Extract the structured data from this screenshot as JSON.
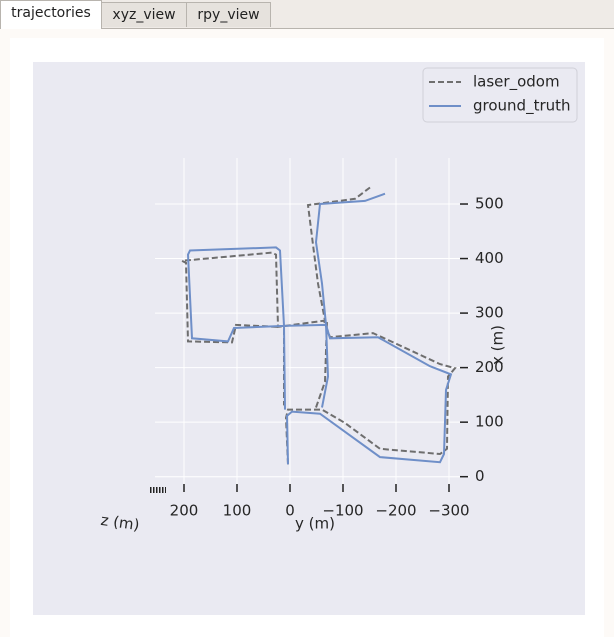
{
  "tabs": [
    "trajectories",
    "xyz_view",
    "rpy_view"
  ],
  "chart_data": {
    "type": "line",
    "xlabel": "y (m)",
    "ylabel": "x (m)",
    "zlabel": "z (m)",
    "xlim": [
      230,
      -320
    ],
    "ylim": [
      -20,
      560
    ],
    "xticks": [
      200,
      100,
      0,
      {
        "value": -100,
        "label": "−100"
      },
      {
        "value": -200,
        "label": "−200"
      },
      {
        "value": -300,
        "label": "−300"
      }
    ],
    "yticks": [
      0,
      100,
      200,
      300,
      400,
      500
    ],
    "grid": true,
    "legend": "upper right",
    "series": [
      {
        "name": "laser_odom",
        "color": "#6e6e6e",
        "dash": true,
        "x": [
          3.8,
          7.5,
          3.8,
          -60.4,
          -103.8,
          -169.8,
          -283.0,
          -296.2,
          -298.1,
          -311.3,
          -283.0,
          -207.5,
          -156.6,
          -75.5,
          -64.2,
          22.6,
          26.4,
          34.0,
          203.8,
          196.2,
          192.5,
          109.4,
          101.9,
          22.6,
          null,
          11.3,
          11.3,
          null,
          -49.1,
          -66.0,
          -69.8,
          null,
          -150.9,
          -122.6,
          -34.0,
          -45.3,
          -52.8,
          -66.0
        ],
        "values": [
          22.7,
          108.0,
          123.1,
          123.1,
          98.5,
          51.1,
          41.7,
          51.1,
          183.7,
          198.9,
          206.4,
          240.5,
          263.3,
          255.7,
          286.0,
          274.6,
          407.2,
          411.0,
          395.8,
          392.0,
          248.1,
          246.2,
          278.4,
          274.6,
          null,
          270.8,
          130.7,
          null,
          126.9,
          174.2,
          286.0,
          null,
          530.3,
          509.5,
          498.1,
          411.0,
          354.2,
          286.0
        ]
      },
      {
        "name": "ground_truth",
        "color": "#6f8fc8",
        "dash": false,
        "x": [
          3.8,
          5.7,
          -3.8,
          -56.6,
          -94.3,
          -169.8,
          -283.0,
          -290.6,
          -294.3,
          -303.8,
          -264.2,
          -166.0,
          -75.5,
          -67.9,
          11.3,
          18.9,
          26.4,
          188.7,
          192.5,
          184.9,
          117.0,
          105.7,
          11.3,
          null,
          11.3,
          9.4,
          null,
          -60.4,
          -71.7,
          -67.9,
          null,
          -179.2,
          -141.5,
          -56.6,
          -49.1,
          -60.4,
          -67.9
        ],
        "values": [
          22.7,
          111.7,
          119.3,
          115.5,
          89.0,
          36.0,
          26.5,
          41.7,
          159.1,
          187.5,
          202.7,
          255.7,
          253.8,
          278.4,
          276.5,
          414.8,
          420.5,
          414.8,
          407.2,
          253.8,
          248.1,
          272.7,
          276.5,
          null,
          276.5,
          123.1,
          null,
          126.9,
          183.7,
          278.4,
          null,
          518.9,
          505.7,
          500.0,
          429.9,
          354.2,
          278.4
        ]
      }
    ]
  }
}
